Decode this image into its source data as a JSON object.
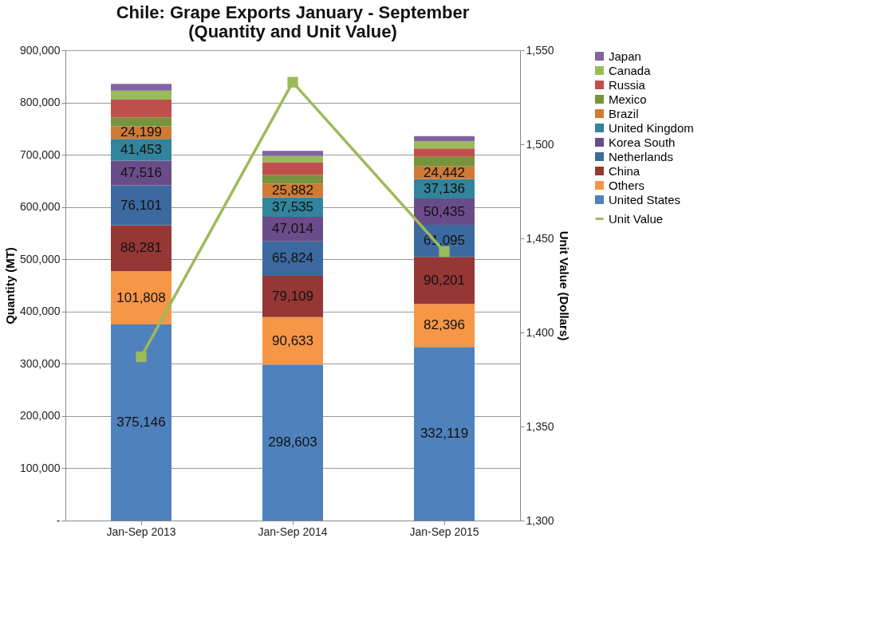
{
  "chart_data": {
    "type": "bar",
    "stacked": true,
    "title": [
      "Chile: Grape Exports January - September",
      "(Quantity and Unit Value)"
    ],
    "ylabel": "Quantity (MT)",
    "y2label": "Unit Value (Dollars)",
    "categories": [
      "Jan-Sep 2013",
      "Jan-Sep 2014",
      "Jan-Sep 2015"
    ],
    "ylim": [
      0,
      900000
    ],
    "yticks": [
      {
        "value": 0,
        "label": "-"
      },
      {
        "value": 100000,
        "label": "100,000"
      },
      {
        "value": 200000,
        "label": "200,000"
      },
      {
        "value": 300000,
        "label": "300,000"
      },
      {
        "value": 400000,
        "label": "400,000"
      },
      {
        "value": 500000,
        "label": "500,000"
      },
      {
        "value": 600000,
        "label": "600,000"
      },
      {
        "value": 700000,
        "label": "700,000"
      },
      {
        "value": 800000,
        "label": "800,000"
      },
      {
        "value": 900000,
        "label": "900,000"
      }
    ],
    "y2lim": [
      1300,
      1550
    ],
    "y2ticks": [
      {
        "value": 1300,
        "label": "1,300"
      },
      {
        "value": 1350,
        "label": "1,350"
      },
      {
        "value": 1400,
        "label": "1,400"
      },
      {
        "value": 1450,
        "label": "1,450"
      },
      {
        "value": 1500,
        "label": "1,500"
      },
      {
        "value": 1550,
        "label": "1,550"
      }
    ],
    "grid": "y",
    "legend": "right",
    "marker": "square",
    "line_style": "solid",
    "series": [
      {
        "name": "United States",
        "color": "#4f81bd",
        "values": [
          375146,
          298603,
          332119
        ],
        "value_labels": [
          "375,146",
          "298,603",
          "332,119"
        ]
      },
      {
        "name": "Others",
        "color": "#f79646",
        "values": [
          101808,
          90633,
          82396
        ],
        "value_labels": [
          "101,808",
          "90,633",
          "82,396"
        ]
      },
      {
        "name": "China",
        "color": "#953735",
        "values": [
          88281,
          79109,
          90201
        ],
        "value_labels": [
          "88,281",
          "79,109",
          "90,201"
        ]
      },
      {
        "name": "Netherlands",
        "color": "#3c6aa0",
        "values": [
          76101,
          65824,
          61095
        ],
        "value_labels": [
          "76,101",
          "65,824",
          "61,095"
        ]
      },
      {
        "name": "Korea South",
        "color": "#6b4c8a",
        "values": [
          47516,
          47014,
          50435
        ],
        "value_labels": [
          "47,516",
          "47,014",
          "50,435"
        ]
      },
      {
        "name": "United Kingdom",
        "color": "#31849b",
        "values": [
          41453,
          37535,
          37136
        ],
        "value_labels": [
          "41,453",
          "37,535",
          "37,136"
        ]
      },
      {
        "name": "Brazil",
        "color": "#d07a35",
        "values": [
          24199,
          25882,
          24442
        ],
        "value_labels": [
          "24,199",
          "25,882",
          "24,442"
        ]
      },
      {
        "name": "Mexico",
        "color": "#77933c",
        "values": [
          17000,
          17000,
          18000
        ]
      },
      {
        "name": "Russia",
        "color": "#c0504d",
        "values": [
          34000,
          24000,
          16000
        ]
      },
      {
        "name": "Canada",
        "color": "#9bbb59",
        "values": [
          17000,
          12000,
          14000
        ]
      },
      {
        "name": "Japan",
        "color": "#8064a2",
        "values": [
          13000,
          10000,
          10000
        ]
      },
      {
        "name": "Unit Value",
        "type": "line",
        "axis": "y2",
        "color": "#9bbb59",
        "values": [
          1387,
          1533,
          1443
        ]
      }
    ]
  }
}
